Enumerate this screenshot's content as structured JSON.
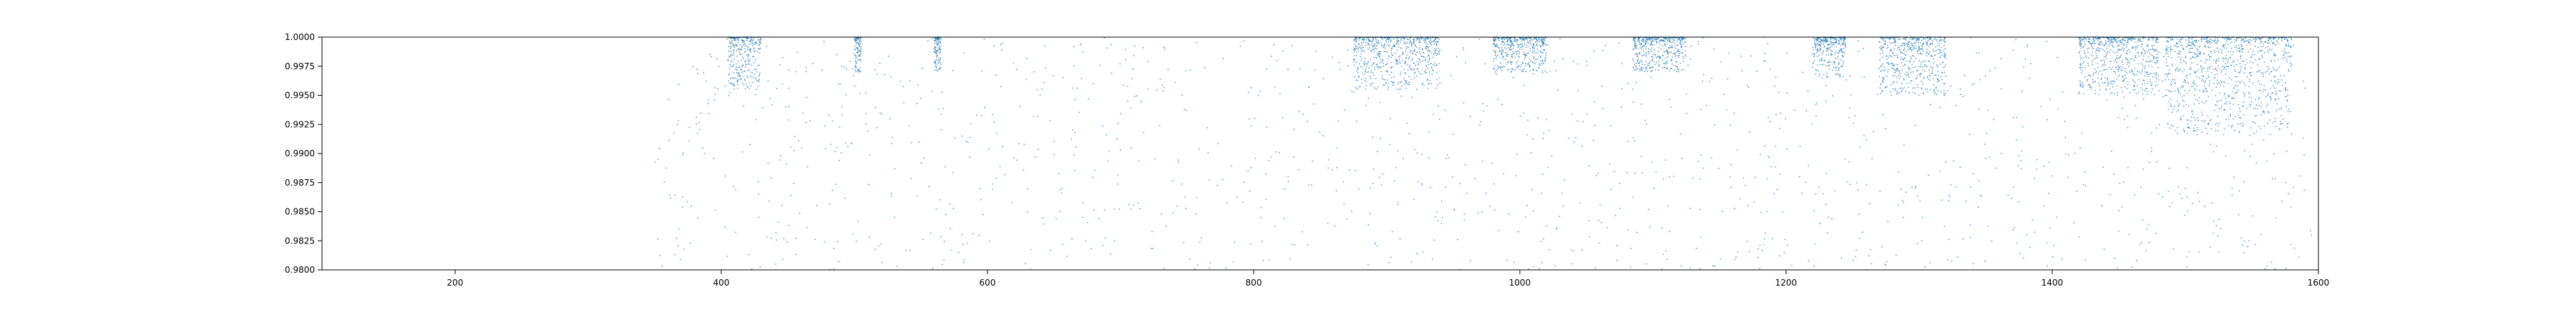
{
  "chart_data": {
    "type": "scatter",
    "title": "",
    "xlabel": "",
    "ylabel": "",
    "xlim": [
      100,
      1600
    ],
    "ylim": [
      0.98,
      1.0
    ],
    "grid": false,
    "legend": "none",
    "x_ticks": [
      200,
      400,
      600,
      800,
      1000,
      1200,
      1400,
      1600
    ],
    "x_tick_labels": [
      "200",
      "400",
      "600",
      "800",
      "1000",
      "1200",
      "1400",
      "1600"
    ],
    "y_ticks": [
      0.98,
      0.9825,
      0.985,
      0.9875,
      0.99,
      0.9925,
      0.995,
      0.9975,
      1.0
    ],
    "y_tick_labels": [
      "0.9800",
      "0.9825",
      "0.9850",
      "0.9875",
      "0.9900",
      "0.9925",
      "0.9950",
      "0.9975",
      "1.0000"
    ],
    "series": [
      {
        "color": "#1f77b4",
        "marker": "point",
        "x_range": [
          350,
          1595
        ],
        "dense_clusters": [
          {
            "x": [
              405,
              430
            ],
            "y_min": 0.9955
          },
          {
            "x": [
              500,
              505
            ],
            "y_min": 0.997
          },
          {
            "x": [
              560,
              565
            ],
            "y_min": 0.997
          },
          {
            "x": [
              875,
              940
            ],
            "y_min": 0.9955
          },
          {
            "x": [
              980,
              1020
            ],
            "y_min": 0.997
          },
          {
            "x": [
              1085,
              1125
            ],
            "y_min": 0.997
          },
          {
            "x": [
              1220,
              1245
            ],
            "y_min": 0.9965
          },
          {
            "x": [
              1270,
              1320
            ],
            "y_min": 0.995
          },
          {
            "x": [
              1420,
              1480
            ],
            "y_min": 0.995
          },
          {
            "x": [
              1485,
              1580
            ],
            "y_min": 0.9915
          }
        ]
      }
    ]
  }
}
